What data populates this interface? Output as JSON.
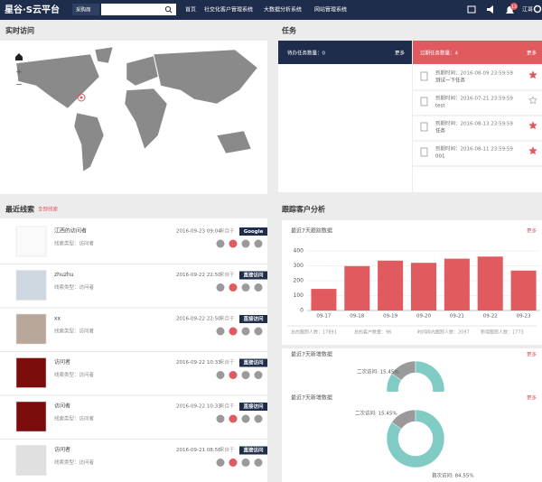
{
  "nav": {
    "logo": "星谷·S云平台",
    "search_scope": "采购商",
    "menu": [
      "首页",
      "社交化客户管理系统",
      "大数据分析系统",
      "网站管理系统"
    ],
    "badge": "13",
    "user": "江哥"
  },
  "realtime": {
    "title": "实时访问"
  },
  "tasks": {
    "title": "任务",
    "pending": {
      "label": "待办任务数量：0",
      "more": "更多"
    },
    "overdue": {
      "label": "过期任务数量：4",
      "more": "更多"
    },
    "items": [
      {
        "due": "到期时间：2016-08-09 23:59:59",
        "name": "测试一下任务",
        "starred": true
      },
      {
        "due": "到期时间：2016-07-21 23:59:59",
        "name": "test",
        "starred": false
      },
      {
        "due": "到期时间：2016-08-13 23:59:59",
        "name": "任务",
        "starred": true
      },
      {
        "due": "到期时间：2016-08-11 23:59:59",
        "name": "001",
        "starred": true
      }
    ]
  },
  "leads": {
    "title": "最近线索",
    "all": "全部线索",
    "items": [
      {
        "name": "江西的访问者",
        "time": "2016-09-23 09:04",
        "from": "来自于",
        "source": "Google",
        "type": "线索类型：访问者"
      },
      {
        "name": "zhuzhu",
        "time": "2016-09-22 22:50",
        "from": "来自于",
        "source": "直接访问",
        "type": "线索类型：访问者"
      },
      {
        "name": "xx",
        "time": "2016-09-22 22:50",
        "from": "来自于",
        "source": "直接访问",
        "type": "线索类型：访问者"
      },
      {
        "name": "访问者",
        "time": "2016-09-22 10:33",
        "from": "来自于",
        "source": "直接访问",
        "type": "线索类型：访问者"
      },
      {
        "name": "访问者",
        "time": "2016-09-22 10:33",
        "from": "来自于",
        "source": "直接访问",
        "type": "线索类型：访问者"
      },
      {
        "name": "访问者",
        "time": "2016-09-21 08:56",
        "from": "来自于",
        "source": "直接访问",
        "type": "线索类型：访问者"
      }
    ]
  },
  "analysis": {
    "title": "跟踪客户分析",
    "more": [
      "更多",
      "更多",
      "更多"
    ],
    "stats": [
      "总的跟踪人数：17891",
      "总的客户数量：96",
      "时间段内跟踪人数：2097",
      "新增跟踪人数：1773"
    ]
  },
  "chart_data": [
    {
      "type": "bar",
      "title": "最近7天跟踪数据",
      "categories": [
        "09-17",
        "09-18",
        "09-19",
        "09-20",
        "09-21",
        "09-22",
        "09-23"
      ],
      "values": [
        145,
        298,
        335,
        320,
        348,
        362,
        268
      ],
      "color": "#e05a5f",
      "ylim": [
        0,
        400
      ],
      "yticks": [
        0,
        100,
        200,
        300,
        400
      ],
      "grid": true
    },
    {
      "type": "pie",
      "title": "最近7天新增数据",
      "values": [
        15.45,
        84.55
      ],
      "value_labels": [
        "二次访问: 15.45%",
        null
      ],
      "colors": [
        "#9a9a9a",
        "#80cbc4"
      ]
    },
    {
      "type": "pie",
      "title": "最近7天新增数据",
      "values": [
        15.45,
        84.55
      ],
      "value_labels": [
        "二次访问: 15.45%",
        "首次访问: 84.55%"
      ],
      "colors": [
        "#9a9a9a",
        "#80cbc4"
      ]
    }
  ]
}
